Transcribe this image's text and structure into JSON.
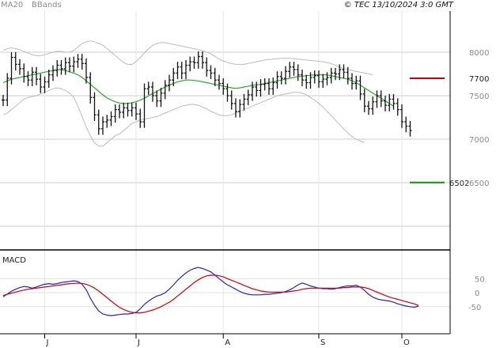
{
  "header": {
    "copyright": "© TEC 13/10/2024 3:0 GMT",
    "legend_ma": "MA20",
    "legend_bb": "BBands"
  },
  "colors": {
    "ma": "#22aa22",
    "bands": "#bbbbbb",
    "bars": "#111111",
    "resistance": "#cc0000",
    "support": "#009900",
    "macd": "#2222cc",
    "signal": "#cc0000",
    "grid": "#cccccc"
  },
  "chart_data": [
    {
      "type": "ohlc",
      "title": "",
      "ylim": [
        6000,
        8300
      ],
      "y_ticks": [
        {
          "value": 8000,
          "label": "8000"
        },
        {
          "value": 7500,
          "label": "7500"
        },
        {
          "value": 7000,
          "label": "7000"
        },
        {
          "value": 6500,
          "label": "6500"
        }
      ],
      "x_labels": [
        {
          "index": 10,
          "label": "J"
        },
        {
          "index": 32,
          "label": "J"
        },
        {
          "index": 53,
          "label": "A"
        },
        {
          "index": 76,
          "label": "S"
        },
        {
          "index": 96,
          "label": "O"
        }
      ],
      "close": [
        7450,
        7700,
        7940,
        7860,
        7810,
        7720,
        7680,
        7770,
        7690,
        7600,
        7660,
        7740,
        7790,
        7850,
        7810,
        7880,
        7840,
        7890,
        7920,
        7870,
        7710,
        7480,
        7280,
        7120,
        7200,
        7220,
        7260,
        7340,
        7310,
        7360,
        7330,
        7360,
        7290,
        7200,
        7580,
        7600,
        7500,
        7440,
        7530,
        7620,
        7680,
        7760,
        7830,
        7760,
        7850,
        7890,
        7880,
        7950,
        7880,
        7790,
        7760,
        7680,
        7640,
        7580,
        7500,
        7410,
        7320,
        7400,
        7460,
        7510,
        7600,
        7560,
        7630,
        7640,
        7580,
        7650,
        7720,
        7700,
        7780,
        7830,
        7800,
        7740,
        7680,
        7650,
        7710,
        7730,
        7660,
        7690,
        7710,
        7760,
        7750,
        7800,
        7770,
        7700,
        7640,
        7670,
        7520,
        7380,
        7350,
        7430,
        7500,
        7440,
        7390,
        7460,
        7410,
        7340,
        7200,
        7150,
        7100
      ],
      "high_offset": 60,
      "low_offset": 70,
      "ma20": [
        7650,
        7670,
        7690,
        7700,
        7710,
        7720,
        7730,
        7740,
        7750,
        7760,
        7770,
        7780,
        7790,
        7800,
        7800,
        7790,
        7775,
        7760,
        7740,
        7710,
        7670,
        7630,
        7590,
        7550,
        7510,
        7475,
        7450,
        7430,
        7415,
        7410,
        7410,
        7420,
        7430,
        7450,
        7470,
        7500,
        7525,
        7550,
        7575,
        7600,
        7620,
        7640,
        7660,
        7670,
        7680,
        7680,
        7675,
        7670,
        7660,
        7650,
        7640,
        7630,
        7620,
        7610,
        7600,
        7590,
        7585,
        7590,
        7600,
        7610,
        7620,
        7625,
        7630,
        7640,
        7650,
        7660,
        7670,
        7680,
        7690,
        7700,
        7710,
        7720,
        7725,
        7730,
        7735,
        7740,
        7740,
        7740,
        7740,
        7730,
        7720,
        7710,
        7700,
        7690,
        7670,
        7650,
        7620,
        7590,
        7560,
        7530,
        7500,
        7470,
        7440,
        7410,
        7380
      ],
      "bb_upper": [
        8020,
        8040,
        8050,
        8040,
        8030,
        8010,
        7990,
        7970,
        7960,
        7960,
        7970,
        7985,
        8000,
        8010,
        8010,
        8000,
        8000,
        8020,
        8060,
        8100,
        8120,
        8130,
        8120,
        8100,
        8080,
        8040,
        8000,
        7960,
        7920,
        7880,
        7860,
        7860,
        7890,
        7940,
        7990,
        8040,
        8080,
        8100,
        8110,
        8110,
        8100,
        8090,
        8080,
        8070,
        8060,
        8050,
        8040,
        8030,
        8020,
        8000,
        7980,
        7950,
        7920,
        7900,
        7880,
        7870,
        7860,
        7860,
        7860,
        7870,
        7880,
        7890,
        7900,
        7910,
        7915,
        7920,
        7925,
        7930,
        7930,
        7930,
        7925,
        7920,
        7915,
        7910,
        7905,
        7900,
        7895,
        7890,
        7880,
        7870,
        7850,
        7830,
        7810,
        7800,
        7790,
        7780,
        7770,
        7760,
        7750,
        7740
      ],
      "bb_lower": [
        7280,
        7300,
        7340,
        7380,
        7420,
        7460,
        7480,
        7490,
        7500,
        7520,
        7540,
        7560,
        7580,
        7590,
        7580,
        7560,
        7530,
        7480,
        7380,
        7260,
        7140,
        7040,
        6960,
        6920,
        6920,
        6960,
        7000,
        7040,
        7060,
        7100,
        7140,
        7180,
        7200,
        7220,
        7230,
        7240,
        7250,
        7260,
        7280,
        7300,
        7320,
        7340,
        7360,
        7380,
        7390,
        7400,
        7400,
        7390,
        7370,
        7350,
        7320,
        7300,
        7280,
        7270,
        7270,
        7280,
        7300,
        7320,
        7340,
        7360,
        7380,
        7400,
        7420,
        7440,
        7460,
        7480,
        7500,
        7510,
        7520,
        7530,
        7540,
        7540,
        7530,
        7510,
        7480,
        7450,
        7410,
        7370,
        7320,
        7270,
        7220,
        7170,
        7120,
        7070,
        7030,
        7000,
        6980,
        6960
      ]
    },
    {
      "type": "line",
      "title": "MACD",
      "ylim": [
        -90,
        90
      ],
      "y_ticks": [
        {
          "value": 50,
          "label": "50"
        },
        {
          "value": 0,
          "label": "0"
        },
        {
          "value": -50,
          "label": "-50"
        }
      ],
      "series": [
        {
          "values": [
            -15,
            -5,
            5,
            12,
            18,
            22,
            20,
            16,
            20,
            26,
            30,
            32,
            30,
            32,
            36,
            38,
            40,
            42,
            40,
            30,
            10,
            -20,
            -45,
            -65,
            -76,
            -80,
            -82,
            -80,
            -78,
            -76,
            -76,
            -74,
            -70,
            -58,
            -42,
            -30,
            -20,
            -12,
            -8,
            0,
            12,
            28,
            44,
            58,
            70,
            80,
            86,
            90,
            86,
            80,
            74,
            62,
            50,
            38,
            28,
            20,
            12,
            4,
            -2,
            -6,
            -8,
            -8,
            -8,
            -6,
            -6,
            -4,
            -2,
            0,
            4,
            10,
            18,
            28,
            34,
            30,
            24,
            20,
            16,
            14,
            14,
            12,
            14,
            18,
            22,
            24,
            24,
            26,
            20,
            8,
            -6,
            -16,
            -22,
            -26,
            -28,
            -30,
            -34,
            -40,
            -44,
            -48,
            -50,
            -52,
            -48
          ]
        },
        {
          "values": [
            -10,
            -6,
            -2,
            2,
            6,
            9,
            12,
            14,
            16,
            18,
            20,
            22,
            24,
            26,
            28,
            30,
            32,
            33,
            34,
            33,
            30,
            24,
            16,
            6,
            -6,
            -18,
            -30,
            -42,
            -52,
            -60,
            -66,
            -70,
            -72,
            -72,
            -70,
            -66,
            -62,
            -56,
            -50,
            -42,
            -34,
            -24,
            -12,
            0,
            12,
            24,
            36,
            46,
            54,
            60,
            62,
            62,
            60,
            56,
            50,
            44,
            38,
            32,
            26,
            20,
            14,
            10,
            6,
            4,
            2,
            2,
            2,
            2,
            2,
            4,
            6,
            8,
            12,
            14,
            16,
            16,
            16,
            16,
            16,
            16,
            16,
            16,
            18,
            18,
            20,
            20,
            20,
            18,
            14,
            8,
            2,
            -4,
            -10,
            -16,
            -20,
            -24,
            -28,
            -32,
            -36,
            -40,
            -46
          ]
        }
      ]
    }
  ],
  "annotations": {
    "resistance": {
      "value": 7700,
      "label": "7700"
    },
    "support": {
      "value": 6502,
      "label": "6502"
    }
  }
}
